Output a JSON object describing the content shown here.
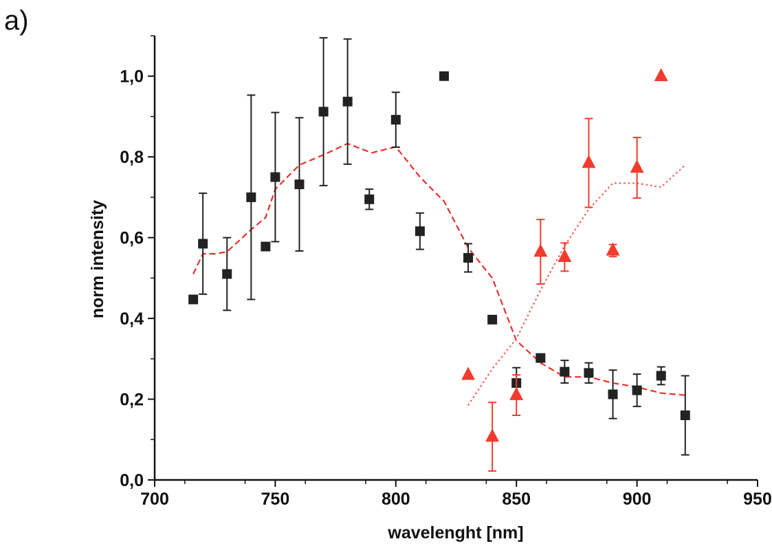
{
  "panel_label": "a)",
  "chart_data": {
    "type": "scatter",
    "xlabel": "wavelenght [nm]",
    "ylabel": "norm intensity",
    "xlim": [
      700,
      950
    ],
    "ylim": [
      0.0,
      1.1
    ],
    "x_ticks": [
      700,
      750,
      800,
      850,
      900,
      950
    ],
    "x_tick_labels": [
      "700",
      "750",
      "800",
      "850",
      "900",
      "950"
    ],
    "y_ticks": [
      0.0,
      0.2,
      0.4,
      0.6,
      0.8,
      1.0
    ],
    "y_tick_labels": [
      "0,0",
      "0,2",
      "0,4",
      "0,6",
      "0,8",
      "1,0"
    ],
    "grid": false,
    "series": [
      {
        "marker": "square",
        "color": "#222222",
        "points": [
          {
            "x": 716,
            "y": 0.447,
            "err": null
          },
          {
            "x": 720,
            "y": 0.585,
            "err": 0.125
          },
          {
            "x": 730,
            "y": 0.51,
            "err": 0.09
          },
          {
            "x": 740,
            "y": 0.7,
            "err": 0.253
          },
          {
            "x": 746,
            "y": 0.578,
            "err": null
          },
          {
            "x": 750,
            "y": 0.75,
            "err": 0.16
          },
          {
            "x": 760,
            "y": 0.732,
            "err": 0.165
          },
          {
            "x": 770,
            "y": 0.912,
            "err": 0.183
          },
          {
            "x": 780,
            "y": 0.937,
            "err": 0.155
          },
          {
            "x": 789,
            "y": 0.695,
            "err": 0.025
          },
          {
            "x": 800,
            "y": 0.892,
            "err": 0.068
          },
          {
            "x": 810,
            "y": 0.616,
            "err": 0.045
          },
          {
            "x": 820,
            "y": 1.0,
            "err": null
          },
          {
            "x": 830,
            "y": 0.55,
            "err": 0.035
          },
          {
            "x": 840,
            "y": 0.397,
            "err": null
          },
          {
            "x": 850,
            "y": 0.24,
            "err": 0.038
          },
          {
            "x": 860,
            "y": 0.302,
            "err": null
          },
          {
            "x": 870,
            "y": 0.268,
            "err": 0.028
          },
          {
            "x": 880,
            "y": 0.265,
            "err": 0.025
          },
          {
            "x": 890,
            "y": 0.212,
            "err": 0.06
          },
          {
            "x": 900,
            "y": 0.222,
            "err": 0.04
          },
          {
            "x": 910,
            "y": 0.258,
            "err": 0.022
          },
          {
            "x": 920,
            "y": 0.16,
            "err": 0.098
          }
        ]
      },
      {
        "marker": "triangle",
        "color": "#f03c2e",
        "points": [
          {
            "x": 830,
            "y": 0.26,
            "err": null
          },
          {
            "x": 840,
            "y": 0.107,
            "err": 0.085
          },
          {
            "x": 850,
            "y": 0.21,
            "err": 0.05
          },
          {
            "x": 860,
            "y": 0.565,
            "err": 0.08
          },
          {
            "x": 870,
            "y": 0.552,
            "err": 0.035
          },
          {
            "x": 880,
            "y": 0.785,
            "err": 0.11
          },
          {
            "x": 890,
            "y": 0.568,
            "err": 0.015
          },
          {
            "x": 900,
            "y": 0.773,
            "err": 0.075
          },
          {
            "x": 910,
            "y": 1.0,
            "err": null
          }
        ]
      }
    ],
    "curves": [
      {
        "style": "dashed",
        "color": "#e8302a",
        "points": [
          [
            716,
            0.51
          ],
          [
            720,
            0.56
          ],
          [
            725,
            0.56
          ],
          [
            730,
            0.565
          ],
          [
            740,
            0.62
          ],
          [
            746,
            0.65
          ],
          [
            750,
            0.72
          ],
          [
            760,
            0.78
          ],
          [
            770,
            0.805
          ],
          [
            780,
            0.833
          ],
          [
            790,
            0.81
          ],
          [
            800,
            0.825
          ],
          [
            810,
            0.75
          ],
          [
            820,
            0.69
          ],
          [
            830,
            0.575
          ],
          [
            840,
            0.5
          ],
          [
            850,
            0.345
          ],
          [
            860,
            0.29
          ],
          [
            870,
            0.255
          ],
          [
            880,
            0.255
          ],
          [
            890,
            0.24
          ],
          [
            900,
            0.23
          ],
          [
            910,
            0.215
          ],
          [
            920,
            0.21
          ]
        ]
      },
      {
        "style": "dotted",
        "color": "#f05a50",
        "points": [
          [
            830,
            0.185
          ],
          [
            840,
            0.275
          ],
          [
            850,
            0.35
          ],
          [
            860,
            0.47
          ],
          [
            870,
            0.58
          ],
          [
            880,
            0.67
          ],
          [
            890,
            0.735
          ],
          [
            900,
            0.735
          ],
          [
            910,
            0.725
          ],
          [
            920,
            0.78
          ]
        ]
      }
    ]
  }
}
